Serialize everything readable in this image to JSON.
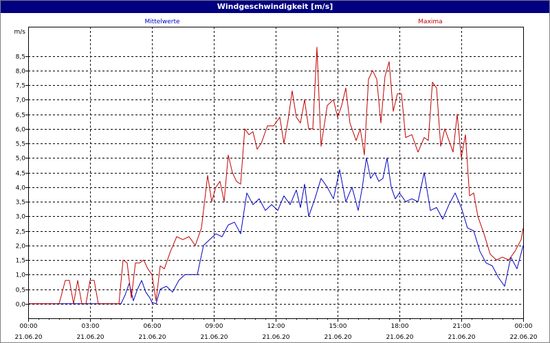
{
  "window": {
    "title": "Windgeschwindigkeit [m/s]"
  },
  "chart_data": {
    "type": "line",
    "title": "Windgeschwindigkeit [m/s]",
    "ylabel": "m/s",
    "ylim": [
      -0.5,
      9.5
    ],
    "yticks": [
      0.0,
      0.5,
      1.0,
      1.5,
      2.0,
      2.5,
      3.0,
      3.5,
      4.0,
      4.5,
      5.0,
      5.5,
      6.0,
      6.5,
      7.0,
      7.5,
      8.0,
      8.5
    ],
    "ytick_labels": [
      "0,0",
      "0,5",
      "1,0",
      "1,5",
      "2,0",
      "2,5",
      "3,0",
      "3,5",
      "4,0",
      "4,5",
      "5,0",
      "5,5",
      "6,0",
      "6,5",
      "7,0",
      "7,5",
      "8,0",
      "8,5"
    ],
    "xlim": [
      0,
      24
    ],
    "xticks": [
      0,
      3,
      6,
      9,
      12,
      15,
      18,
      21,
      24
    ],
    "xtick_time_labels": [
      "00:00",
      "03:00",
      "06:00",
      "09:00",
      "12:00",
      "15:00",
      "18:00",
      "21:00",
      "00:00"
    ],
    "xtick_date_labels": [
      "21.06.20",
      "21.06.20",
      "21.06.20",
      "21.06.20",
      "21.06.20",
      "21.06.20",
      "21.06.20",
      "21.06.20",
      "22.06.20"
    ],
    "grid": true,
    "legend_position": "top",
    "series": [
      {
        "name": "Mittelwerte",
        "color": "#0000c0",
        "x": [
          0,
          0.5,
          1,
          1.5,
          2,
          2.5,
          3,
          3.5,
          4,
          4.5,
          4.7,
          4.9,
          5.1,
          5.3,
          5.5,
          5.7,
          5.9,
          6.0,
          6.2,
          6.4,
          6.7,
          7.0,
          7.3,
          7.6,
          7.9,
          8.2,
          8.5,
          8.8,
          9.1,
          9.4,
          9.7,
          10.0,
          10.3,
          10.6,
          10.9,
          11.2,
          11.5,
          11.8,
          12.1,
          12.4,
          12.7,
          13.0,
          13.2,
          13.4,
          13.6,
          13.9,
          14.2,
          14.5,
          14.8,
          15.1,
          15.4,
          15.7,
          16.0,
          16.2,
          16.4,
          16.6,
          16.8,
          17.0,
          17.2,
          17.4,
          17.6,
          17.8,
          18.0,
          18.3,
          18.6,
          18.9,
          19.2,
          19.5,
          19.8,
          20.1,
          20.4,
          20.7,
          21.0,
          21.3,
          21.6,
          21.9,
          22.2,
          22.5,
          22.8,
          23.1,
          23.4,
          23.7,
          24.0
        ],
        "values": [
          0,
          0,
          0,
          0,
          0,
          0,
          0,
          0,
          0,
          0,
          0.3,
          0.7,
          0.1,
          0.5,
          0.8,
          0.4,
          0.2,
          0.05,
          0.0,
          0.5,
          0.6,
          0.4,
          0.8,
          1.0,
          1.0,
          1.0,
          2.0,
          2.2,
          2.4,
          2.3,
          2.7,
          2.8,
          2.4,
          3.8,
          3.4,
          3.6,
          3.2,
          3.4,
          3.2,
          3.7,
          3.4,
          3.9,
          3.3,
          4.1,
          3.0,
          3.6,
          4.3,
          4.0,
          3.6,
          4.6,
          3.5,
          4.0,
          3.2,
          4.0,
          5.0,
          4.3,
          4.5,
          4.2,
          4.3,
          5.0,
          4.0,
          3.6,
          3.8,
          3.5,
          3.6,
          3.5,
          4.5,
          3.2,
          3.3,
          2.9,
          3.4,
          3.8,
          3.3,
          2.6,
          2.5,
          1.8,
          1.4,
          1.3,
          0.9,
          0.6,
          1.6,
          1.2,
          2.0
        ]
      },
      {
        "name": "Maxima",
        "color": "#c00000",
        "x": [
          0,
          0.5,
          1,
          1.5,
          1.8,
          2.0,
          2.2,
          2.4,
          2.6,
          2.8,
          3.0,
          3.2,
          3.4,
          3.6,
          4.0,
          4.4,
          4.6,
          4.8,
          5.0,
          5.2,
          5.4,
          5.6,
          5.8,
          6.0,
          6.2,
          6.4,
          6.6,
          6.9,
          7.2,
          7.5,
          7.8,
          8.1,
          8.4,
          8.7,
          8.9,
          9.1,
          9.3,
          9.5,
          9.7,
          9.9,
          10.1,
          10.3,
          10.5,
          10.7,
          10.9,
          11.1,
          11.3,
          11.6,
          11.9,
          12.2,
          12.4,
          12.6,
          12.8,
          13.0,
          13.2,
          13.4,
          13.6,
          13.8,
          14.0,
          14.2,
          14.5,
          14.8,
          15.0,
          15.2,
          15.4,
          15.6,
          15.9,
          16.1,
          16.3,
          16.5,
          16.7,
          16.9,
          17.1,
          17.3,
          17.5,
          17.7,
          17.9,
          18.1,
          18.3,
          18.6,
          18.9,
          19.2,
          19.4,
          19.6,
          19.8,
          20.0,
          20.2,
          20.4,
          20.6,
          20.8,
          21.0,
          21.2,
          21.4,
          21.6,
          21.8,
          22.1,
          22.4,
          22.7,
          23.0,
          23.3,
          23.6,
          23.9,
          24.0
        ],
        "values": [
          0,
          0,
          0,
          0,
          0.8,
          0.8,
          0,
          0.8,
          0,
          0,
          0.8,
          0.8,
          0,
          0,
          0,
          0,
          1.5,
          1.4,
          0.2,
          1.4,
          1.4,
          1.5,
          1.2,
          1.0,
          0.1,
          1.3,
          1.2,
          1.8,
          2.3,
          2.2,
          2.3,
          2.0,
          2.6,
          4.4,
          3.5,
          4.0,
          4.2,
          3.5,
          5.1,
          4.5,
          4.2,
          4.1,
          6.0,
          5.8,
          5.9,
          5.3,
          5.5,
          6.1,
          6.1,
          6.4,
          5.5,
          6.3,
          7.3,
          6.4,
          6.2,
          7.0,
          6.0,
          6.0,
          8.8,
          5.4,
          6.8,
          7.0,
          6.4,
          6.8,
          7.4,
          6.2,
          5.6,
          6.0,
          5.1,
          7.7,
          8.0,
          7.7,
          6.2,
          7.8,
          8.3,
          6.6,
          7.2,
          7.2,
          5.7,
          5.8,
          5.2,
          5.7,
          5.6,
          7.6,
          7.4,
          5.4,
          6.0,
          5.6,
          5.2,
          6.5,
          5.0,
          5.8,
          3.7,
          3.8,
          3.0,
          2.4,
          1.7,
          1.5,
          1.6,
          1.5,
          1.8,
          2.2,
          2.6
        ]
      }
    ]
  }
}
